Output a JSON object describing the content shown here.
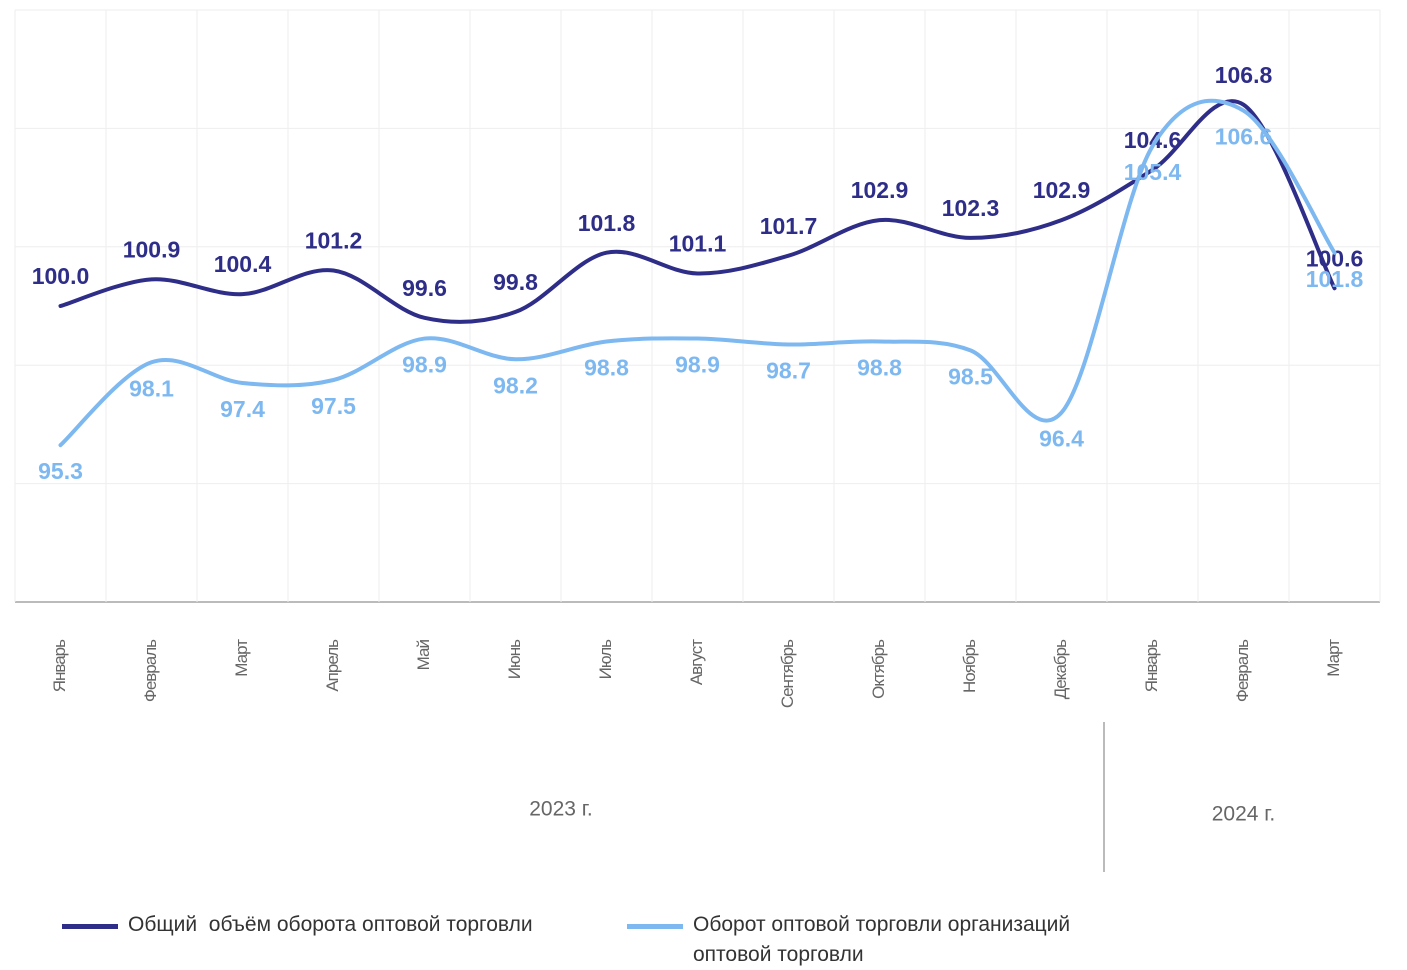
{
  "chart_data": {
    "type": "line",
    "categories": [
      "Январь",
      "Февраль",
      "Март",
      "Апрель",
      "Май",
      "Июнь",
      "Июль",
      "Август",
      "Сентябрь",
      "Октябрь",
      "Ноябрь",
      "Декабрь",
      "Январь",
      "Февраль",
      "Март"
    ],
    "groups": [
      {
        "label": "2023 г.",
        "from": 0,
        "to": 11
      },
      {
        "label": "2024 г.",
        "from": 12,
        "to": 14
      }
    ],
    "series": [
      {
        "name": "Общий  объём оборота оптовой торговли",
        "color": "#2e2d88",
        "values": [
          100.0,
          100.9,
          100.4,
          101.2,
          99.6,
          99.8,
          101.8,
          101.1,
          101.7,
          102.9,
          102.3,
          102.9,
          104.6,
          106.8,
          100.6
        ],
        "value_labels": [
          "100.0",
          "100.9",
          "100.4",
          "101.2",
          "99.6",
          "99.8",
          "101.8",
          "101.1",
          "101.7",
          "102.9",
          "102.3",
          "102.9",
          "104.6",
          "106.8",
          "100.6"
        ]
      },
      {
        "name": "Оборот оптовой торговли организаций оптовой торговли",
        "color": "#7db8f0",
        "values": [
          95.3,
          98.1,
          97.4,
          97.5,
          98.9,
          98.2,
          98.8,
          98.9,
          98.7,
          98.8,
          98.5,
          96.4,
          105.4,
          106.6,
          101.8
        ]
      }
    ],
    "ylim": [
      90,
      110
    ],
    "yticks": [
      90,
      94,
      98,
      102,
      106,
      110
    ],
    "grid": true
  }
}
